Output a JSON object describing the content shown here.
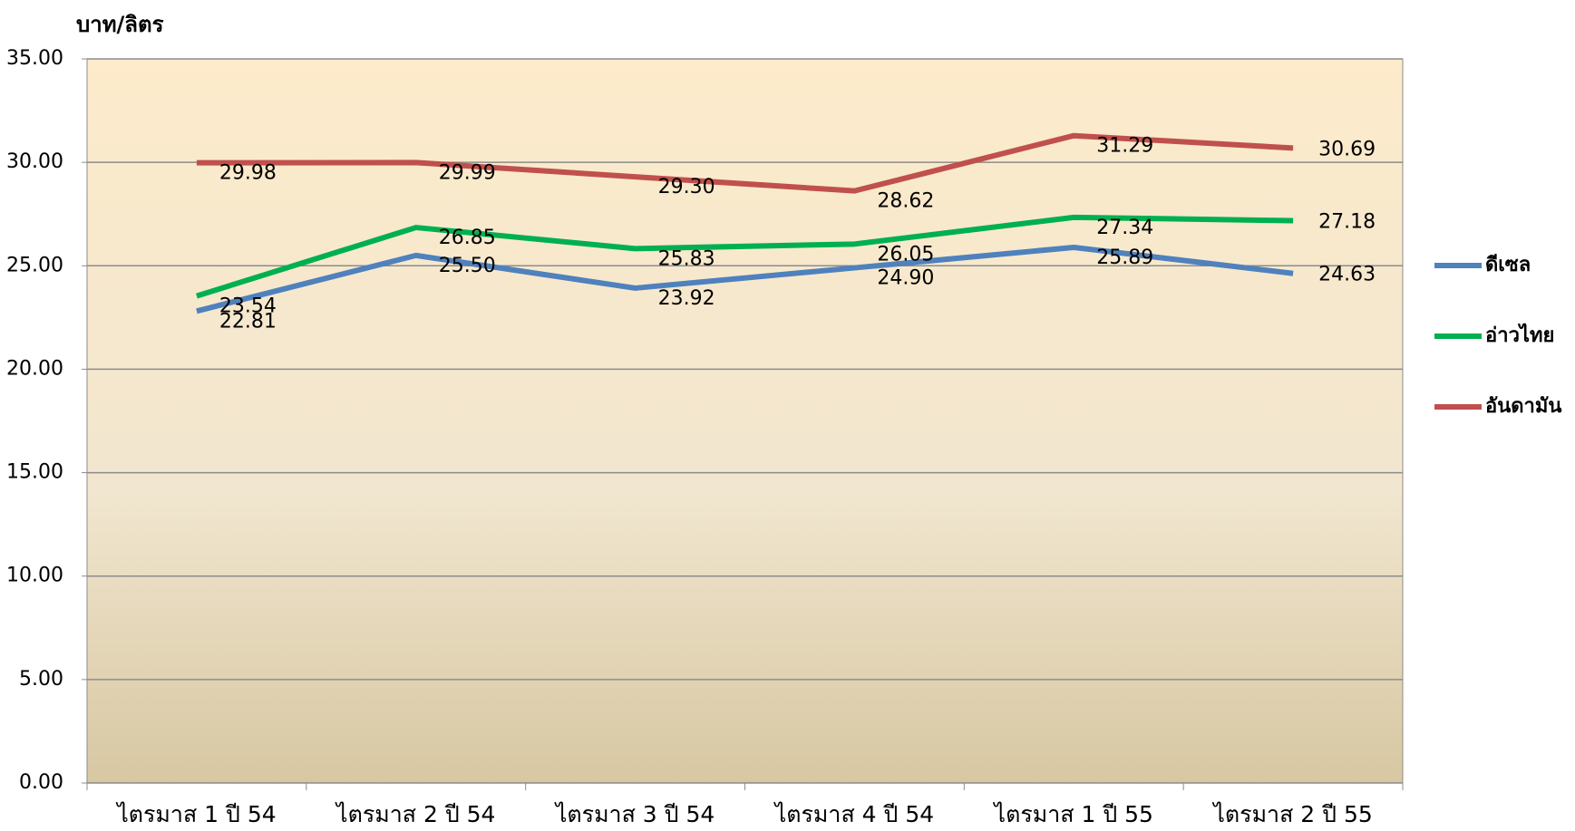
{
  "chart_data": {
    "type": "line",
    "y_label": "บาท/ลิตร",
    "categories": [
      "ไตรมาส 1 ปี 54",
      "ไตรมาส 2 ปี 54",
      "ไตรมาส 3 ปี 54",
      "ไตรมาส 4 ปี 54",
      "ไตรมาส 1 ปี 55",
      "ไตรมาส 2 ปี 55"
    ],
    "series": [
      {
        "name": "ดีเซล",
        "color": "#4f81bd",
        "values": [
          22.81,
          25.5,
          23.92,
          24.9,
          25.89,
          24.63
        ],
        "value_labels": [
          "22.81",
          "25.50",
          "23.92",
          "24.90",
          "25.89",
          "24.63"
        ]
      },
      {
        "name": "อ่าวไทย",
        "color": "#00b050",
        "values": [
          23.54,
          26.85,
          25.83,
          26.05,
          27.34,
          27.18
        ],
        "value_labels": [
          "23.54",
          "26.85",
          "25.83",
          "26.05",
          "27.34",
          "27.18"
        ]
      },
      {
        "name": "อันดามัน",
        "color": "#c0504d",
        "values": [
          29.98,
          29.99,
          29.3,
          28.62,
          31.29,
          30.69
        ],
        "value_labels": [
          "29.98",
          "29.99",
          "29.30",
          "28.62",
          "31.29",
          "30.69"
        ]
      }
    ],
    "ylim": [
      0,
      35
    ],
    "yticks": [
      {
        "value": 0,
        "label": "0.00"
      },
      {
        "value": 5,
        "label": "5.00"
      },
      {
        "value": 10,
        "label": "10.00"
      },
      {
        "value": 15,
        "label": "15.00"
      },
      {
        "value": 20,
        "label": "20.00"
      },
      {
        "value": 25,
        "label": "25.00"
      },
      {
        "value": 30,
        "label": "30.00"
      },
      {
        "value": 35,
        "label": "35.00"
      }
    ],
    "grid": true,
    "legend": "right"
  }
}
